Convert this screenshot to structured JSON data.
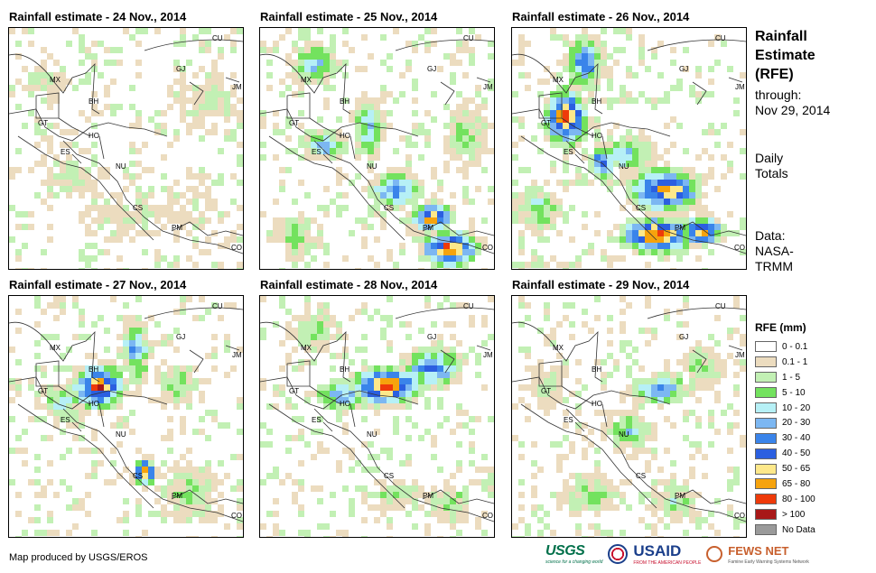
{
  "panels": [
    {
      "title": "Rainfall estimate - 24 Nov., 2014"
    },
    {
      "title": "Rainfall estimate - 25 Nov., 2014"
    },
    {
      "title": "Rainfall estimate - 26 Nov., 2014"
    },
    {
      "title": "Rainfall estimate - 27 Nov., 2014"
    },
    {
      "title": "Rainfall estimate - 28 Nov., 2014"
    },
    {
      "title": "Rainfall estimate - 29 Nov., 2014"
    }
  ],
  "country_labels": [
    "MX",
    "BH",
    "GT",
    "HO",
    "ES",
    "NU",
    "CS",
    "PM",
    "CO",
    "CU",
    "JM",
    "GJ"
  ],
  "side": {
    "title_line1": "Rainfall",
    "title_line2": "Estimate",
    "title_line3": "(RFE)",
    "through_label": "through:",
    "through_date": "Nov 29, 2014",
    "daily_line1": "Daily",
    "daily_line2": "Totals",
    "data_line1": "Data:",
    "data_line2": "NASA-",
    "data_line3": "TRMM"
  },
  "legend": {
    "title": "RFE (mm)",
    "items": [
      {
        "label": "0 - 0.1",
        "color": "#ffffff"
      },
      {
        "label": "0.1 - 1",
        "color": "#ecdcbf"
      },
      {
        "label": "1 - 5",
        "color": "#c2f0b4"
      },
      {
        "label": "5 - 10",
        "color": "#73e25e"
      },
      {
        "label": "10 - 20",
        "color": "#b6f0f6"
      },
      {
        "label": "20 - 30",
        "color": "#7cb7f2"
      },
      {
        "label": "30 - 40",
        "color": "#3a84ea"
      },
      {
        "label": "40 - 50",
        "color": "#2b5fe0"
      },
      {
        "label": "50 - 65",
        "color": "#fde88a"
      },
      {
        "label": "65 - 80",
        "color": "#f6a30d"
      },
      {
        "label": "80 - 100",
        "color": "#ee3a0a"
      },
      {
        "label": "> 100",
        "color": "#a81818"
      },
      {
        "label": "No Data",
        "color": "#9a9a9a"
      }
    ]
  },
  "credit": "Map produced by USGS/EROS",
  "logos": {
    "usgs": "USGS",
    "usgs_tagline": "science for a changing world",
    "usaid": "USAID",
    "usaid_tagline": "FROM THE AMERICAN PEOPLE",
    "fewsnet": "FEWS NET",
    "fewsnet_tagline": "Famine Early Warning Systems Network"
  }
}
